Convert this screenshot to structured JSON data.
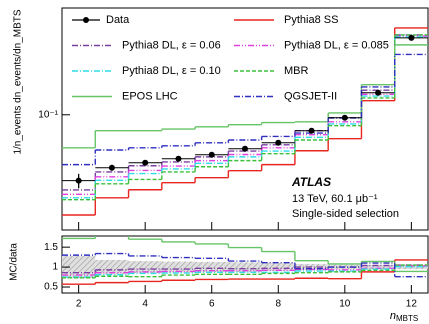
{
  "chart_data": [
    {
      "type": "step",
      "log_y": true,
      "ylabel": "1/n_events dn_events/dn_MBTS",
      "annotations": {
        "experiment": "ATLAS",
        "energy": "13 TeV, 60.1 μb⁻¹",
        "selection": "Single-sided selection"
      },
      "x": [
        2,
        3,
        4,
        5,
        6,
        7,
        8,
        9,
        10,
        11,
        12
      ],
      "xlim": [
        1.5,
        12.5
      ],
      "xticks": [
        2,
        4,
        6,
        8,
        10,
        12
      ],
      "ylim": [
        0.015,
        0.58
      ],
      "yticks": [
        {
          "value": 0.1,
          "label": "10⁻¹"
        }
      ],
      "series": [
        {
          "name": "Data",
          "color": "#000000",
          "marker": "point",
          "values": [
            0.0338,
            0.0418,
            0.0454,
            0.0485,
            0.0518,
            0.0572,
            0.0631,
            0.0769,
            0.0952,
            0.1436,
            0.355
          ],
          "errors": [
            0.004,
            0.002,
            0.002,
            0.002,
            0.002,
            0.002,
            0.002,
            0.002,
            0.002,
            0.003,
            0.006
          ]
        },
        {
          "name": "Pythia8 SS",
          "color": "#e8251f",
          "dash": "solid",
          "values": [
            0.0192,
            0.0255,
            0.0291,
            0.0327,
            0.0355,
            0.0398,
            0.044,
            0.0553,
            0.0674,
            0.126,
            0.418
          ]
        },
        {
          "name": "Pythia8 DL, ε = 0.06",
          "color": "#7a3fa0",
          "dash": "dashdot",
          "values": [
            0.029,
            0.039,
            0.0432,
            0.046,
            0.05,
            0.055,
            0.061,
            0.077,
            0.095,
            0.15,
            0.372
          ]
        },
        {
          "name": "Pythia8 DL, ε = 0.085",
          "color": "#e040e0",
          "dash": "dashdotdot",
          "values": [
            0.027,
            0.036,
            0.04,
            0.043,
            0.047,
            0.052,
            0.058,
            0.072,
            0.089,
            0.14,
            0.365
          ]
        },
        {
          "name": "Pythia8 DL, ε = 0.10",
          "color": "#30dce8",
          "dash": "dashdot",
          "values": [
            0.0255,
            0.034,
            0.038,
            0.041,
            0.045,
            0.05,
            0.055,
            0.069,
            0.086,
            0.136,
            0.36
          ]
        },
        {
          "name": "MBR",
          "color": "#3cc03c",
          "dash": "dashed",
          "values": [
            0.0247,
            0.0321,
            0.0345,
            0.039,
            0.0425,
            0.047,
            0.0527,
            0.066,
            0.0835,
            0.132,
            0.372
          ]
        },
        {
          "name": "EPOS LHC",
          "color": "#66c466",
          "dash": "solid",
          "values": [
            0.058,
            0.077,
            0.077,
            0.079,
            0.082,
            0.085,
            0.088,
            0.089,
            0.103,
            0.164,
            0.316
          ]
        },
        {
          "name": "QGSJET-II",
          "color": "#3030c0",
          "dash": "dashdot",
          "values": [
            0.044,
            0.056,
            0.058,
            0.06,
            0.063,
            0.066,
            0.07,
            0.074,
            0.095,
            0.158,
            0.27
          ]
        }
      ]
    },
    {
      "type": "step",
      "log_y": false,
      "ylabel": "MC/data",
      "xlabel": {
        "main": "n",
        "sub": "MBTS"
      },
      "x": [
        2,
        3,
        4,
        5,
        6,
        7,
        8,
        9,
        10,
        11,
        12
      ],
      "xlim": [
        1.5,
        12.5
      ],
      "xticks": [
        2,
        4,
        6,
        8,
        10,
        12
      ],
      "ylim": [
        0.35,
        1.78
      ],
      "yticks": [
        0.5,
        1,
        1.5
      ],
      "data_uncertainty": [
        0.28,
        0.18,
        0.15,
        0.14,
        0.13,
        0.12,
        0.1,
        0.08,
        0.06,
        0.05,
        0.05
      ],
      "series": [
        {
          "color": "#e8251f",
          "dash": "solid",
          "values": [
            0.57,
            0.61,
            0.64,
            0.67,
            0.69,
            0.7,
            0.7,
            0.72,
            0.71,
            0.88,
            1.18
          ]
        },
        {
          "color": "#7a3fa0",
          "dash": "dashdot",
          "values": [
            0.86,
            0.93,
            0.95,
            0.95,
            0.97,
            0.96,
            0.97,
            1.0,
            1.0,
            1.04,
            1.05
          ]
        },
        {
          "color": "#e040e0",
          "dash": "dashdotdot",
          "values": [
            0.8,
            0.86,
            0.88,
            0.89,
            0.91,
            0.91,
            0.92,
            0.94,
            0.93,
            0.97,
            1.03
          ]
        },
        {
          "color": "#30dce8",
          "dash": "dashdot",
          "values": [
            0.75,
            0.81,
            0.84,
            0.85,
            0.87,
            0.87,
            0.87,
            0.9,
            0.9,
            0.95,
            1.01
          ]
        },
        {
          "color": "#3cc03c",
          "dash": "dashed",
          "values": [
            0.73,
            0.77,
            0.76,
            0.8,
            0.82,
            0.82,
            0.84,
            0.86,
            0.88,
            0.92,
            1.05
          ]
        },
        {
          "color": "#66c466",
          "dash": "solid",
          "values": [
            1.72,
            1.84,
            1.7,
            1.63,
            1.58,
            1.49,
            1.39,
            1.16,
            1.08,
            1.14,
            0.89
          ]
        },
        {
          "color": "#3030c0",
          "dash": "dashdot",
          "values": [
            1.3,
            1.34,
            1.28,
            1.24,
            1.22,
            1.15,
            1.11,
            0.96,
            1.0,
            1.1,
            0.76
          ]
        }
      ]
    }
  ]
}
